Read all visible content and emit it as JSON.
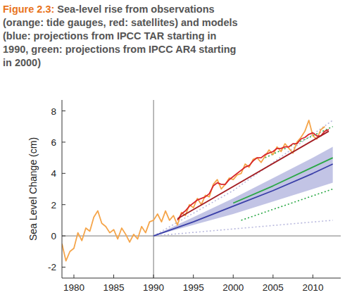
{
  "chart_data": {
    "type": "line",
    "title": "Figure 2.3:",
    "subtitle": "Sea-level rise from observations (orange: tide gauges, red: satellites) and models (blue: projections from IPCC TAR starting in 1990, green: projections from IPCC AR4 starting in 2000)",
    "y_label": "Sea Level Change (cm)",
    "xlim": [
      1978.5,
      2013.5
    ],
    "ylim": [
      -2.7,
      8.7
    ],
    "xticks": [
      1980,
      1985,
      1990,
      1995,
      2000,
      2005,
      2010
    ],
    "yticks": [
      -2,
      0,
      2,
      4,
      6,
      8
    ],
    "x_reference": 1990,
    "y_reference": 0,
    "grid": false,
    "series": [
      {
        "type": "band",
        "color": "#aeb0dc",
        "x": [
          1990,
          1995,
          2000,
          2005,
          2010,
          2012.5
        ],
        "values": [
          0,
          1.2,
          2.4,
          3.7,
          5.0,
          5.7
        ],
        "lower": [
          0,
          0.7,
          1.4,
          2.2,
          3.0,
          3.4
        ]
      },
      {
        "type": "line",
        "color": "#b9b9de",
        "line_style": "dotted",
        "x": [
          1990,
          2000,
          2012.5
        ],
        "values": [
          0,
          2.9,
          7.4
        ]
      },
      {
        "type": "line",
        "color": "#b9b9de",
        "line_style": "dotted",
        "x": [
          1990,
          2012.5
        ],
        "values": [
          0,
          1.0
        ]
      },
      {
        "type": "line",
        "color": "#3a3fa8",
        "line_style": "solid",
        "x": [
          1990,
          1995,
          2000,
          2005,
          2010,
          2012.5
        ],
        "values": [
          0,
          0.9,
          1.9,
          2.9,
          4.0,
          4.6
        ]
      },
      {
        "type": "line",
        "color": "#2aa845",
        "line_style": "dotted",
        "x": [
          2004,
          2012.5
        ],
        "values": [
          5.0,
          7.0
        ]
      },
      {
        "type": "line",
        "color": "#2aa845",
        "line_style": "dotted",
        "x": [
          2001,
          2012.5
        ],
        "values": [
          1.0,
          3.0
        ]
      },
      {
        "type": "line",
        "color": "#2aa845",
        "line_style": "solid",
        "x": [
          2000,
          2005,
          2010,
          2012.5
        ],
        "values": [
          2.1,
          3.2,
          4.4,
          5.0
        ]
      },
      {
        "type": "line",
        "color": "#f5a54a",
        "line_style": "solid",
        "x": [
          1978.5,
          1979,
          1979.5,
          1980,
          1980.5,
          1981,
          1981.5,
          1982,
          1982.5,
          1983,
          1983.5,
          1984,
          1984.5,
          1985,
          1985.5,
          1986,
          1986.5,
          1987,
          1987.5,
          1988,
          1988.5,
          1989,
          1989.5,
          1990,
          1990.5,
          1991,
          1991.5,
          1992,
          1992.5,
          1993,
          1993.5,
          1994,
          1994.5,
          1995,
          1995.5,
          1996,
          1996.5,
          1997,
          1997.5,
          1998,
          1998.5,
          1999,
          1999.5,
          2000,
          2000.5,
          2001,
          2001.5,
          2002,
          2002.5,
          2003,
          2003.5,
          2004,
          2004.5,
          2005,
          2005.5,
          2006,
          2006.5,
          2007,
          2007.5,
          2008,
          2008.5,
          2009,
          2009.5,
          2010,
          2010.5,
          2011,
          2011.5
        ],
        "values": [
          -0.5,
          -1.6,
          -1.0,
          -0.8,
          0.2,
          -0.3,
          0.5,
          0.3,
          1.2,
          1.6,
          0.8,
          0.6,
          0.2,
          0.4,
          -0.2,
          0.5,
          0.1,
          -0.4,
          0.1,
          -0.2,
          0.6,
          0.2,
          0.9,
          1.0,
          1.4,
          0.9,
          1.6,
          1.0,
          1.3,
          0.7,
          1.5,
          1.3,
          2.0,
          1.8,
          2.4,
          2.0,
          2.6,
          2.5,
          3.3,
          3.6,
          3.0,
          3.3,
          3.7,
          3.6,
          3.9,
          4.0,
          4.6,
          4.4,
          4.9,
          5.0,
          4.7,
          5.1,
          5.5,
          5.2,
          5.7,
          5.4,
          5.9,
          5.6,
          5.3,
          6.0,
          6.3,
          6.7,
          7.4,
          6.4,
          6.2,
          6.8,
          7.0
        ]
      },
      {
        "type": "line",
        "color": "#d7262b",
        "line_style": "solid",
        "x": [
          1993,
          1993.5,
          1994,
          1994.5,
          1995,
          1995.5,
          1996,
          1996.5,
          1997,
          1997.5,
          1998,
          1998.5,
          1999,
          1999.5,
          2000,
          2000.5,
          2001,
          2001.5,
          2002,
          2002.5,
          2003,
          2003.5,
          2004,
          2004.5,
          2005,
          2005.5,
          2006,
          2006.5,
          2007,
          2007.5,
          2008,
          2008.5,
          2009,
          2009.5,
          2010,
          2010.5,
          2011,
          2011.5,
          2012
        ],
        "values": [
          1.0,
          1.4,
          1.6,
          1.9,
          2.1,
          2.3,
          2.4,
          2.5,
          2.7,
          3.2,
          3.4,
          3.3,
          3.3,
          3.6,
          3.8,
          4.0,
          4.2,
          4.4,
          4.5,
          4.8,
          5.0,
          5.0,
          5.2,
          5.3,
          5.4,
          5.6,
          5.6,
          5.7,
          5.7,
          5.9,
          5.9,
          6.2,
          6.3,
          6.5,
          6.6,
          6.4,
          6.4,
          6.7,
          6.8
        ]
      },
      {
        "type": "line",
        "color": "#a31d22",
        "line_style": "solid",
        "x": [
          1993,
          2012
        ],
        "values": [
          1.1,
          6.7
        ]
      }
    ]
  }
}
